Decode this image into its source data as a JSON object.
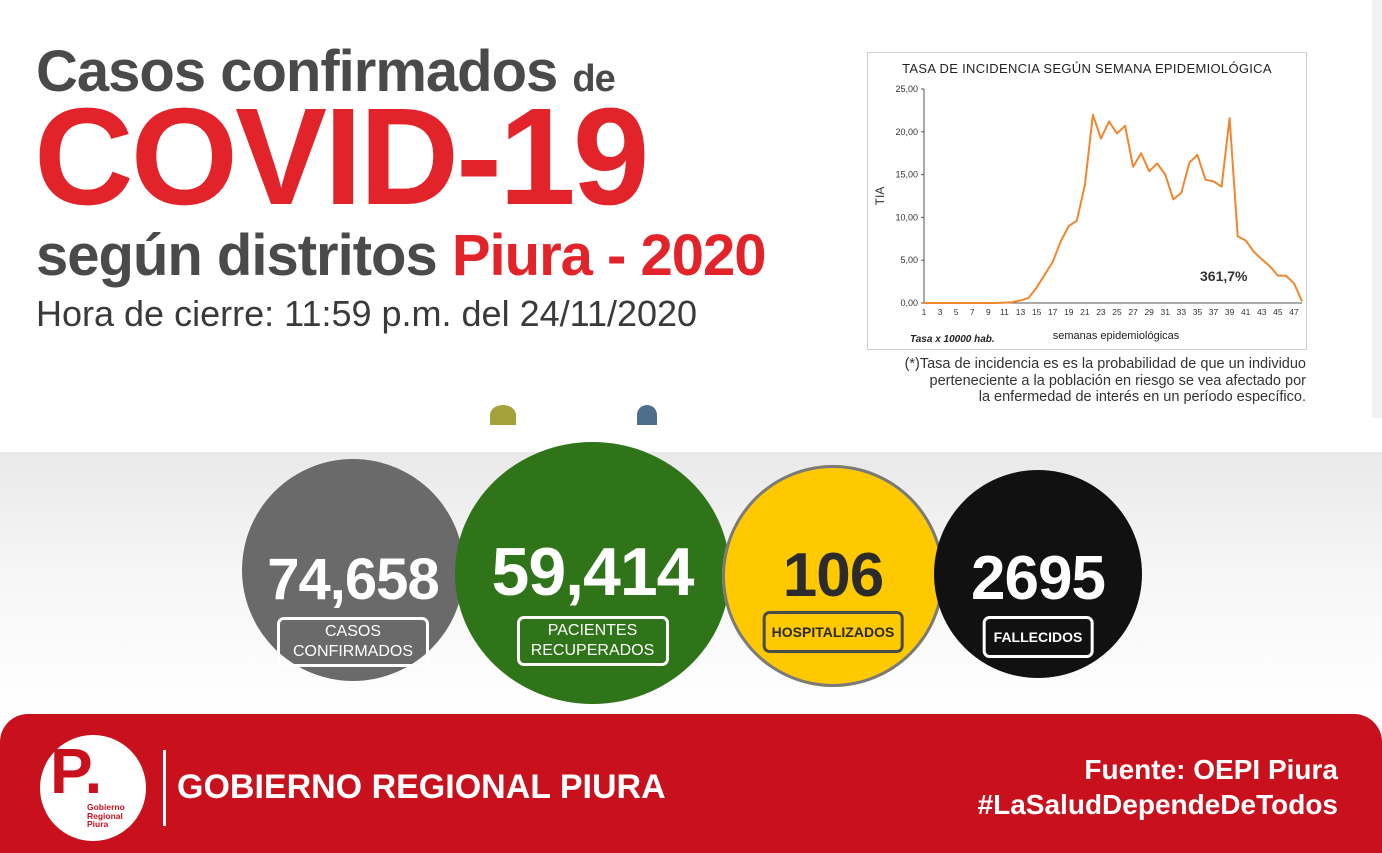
{
  "header": {
    "line1_main": "Casos confirmados",
    "line1_small": "de",
    "line2": "COVID-19",
    "line3_dark": "según distritos",
    "line3_red": "Piura - 2020",
    "closing_time": "Hora de cierre: 11:59 p.m. del 24/11/2020"
  },
  "chart_data": {
    "type": "line",
    "title": "TASA DE INCIDENCIA SEGÚN SEMANA EPIDEMIOLÓGICA",
    "ylabel": "TIA",
    "xlabel": "semanas epidemiológicas",
    "note": "Tasa x 10000 hab.",
    "annotation": "361,7%",
    "ylim": [
      0,
      25
    ],
    "yticks": [
      "0,00",
      "5,00",
      "10,00",
      "15,00",
      "20,00",
      "25,00"
    ],
    "xticks": [
      "1",
      "3",
      "5",
      "7",
      "9",
      "11",
      "13",
      "15",
      "17",
      "19",
      "21",
      "23",
      "25",
      "27",
      "29",
      "31",
      "33",
      "35",
      "37",
      "39",
      "41",
      "43",
      "45",
      "47"
    ],
    "color": "#f0872e",
    "x": [
      1,
      2,
      3,
      4,
      5,
      6,
      7,
      8,
      9,
      10,
      11,
      12,
      13,
      14,
      15,
      16,
      17,
      18,
      19,
      20,
      21,
      22,
      23,
      24,
      25,
      26,
      27,
      28,
      29,
      30,
      31,
      32,
      33,
      34,
      35,
      36,
      37,
      38,
      39,
      40,
      41,
      42,
      43,
      44,
      45,
      46,
      47,
      48
    ],
    "values": [
      0,
      0,
      0,
      0,
      0,
      0,
      0,
      0,
      0,
      0,
      0.05,
      0.1,
      0.3,
      0.6,
      1.8,
      3.3,
      4.8,
      7.2,
      9.0,
      9.6,
      13.8,
      22.0,
      19.2,
      21.2,
      19.8,
      20.7,
      15.9,
      17.5,
      15.4,
      16.3,
      15.0,
      12.1,
      12.9,
      16.4,
      17.3,
      14.4,
      14.2,
      13.6,
      21.6,
      7.8,
      7.3,
      6.0,
      5.1,
      4.3,
      3.2,
      3.2,
      2.3,
      0.2
    ]
  },
  "footnote": [
    "(*)Tasa de incidencia es es la probabilidad de que un individuo",
    "perteneciente a la población en riesgo se vea afectado por",
    "la enfermedad de interés en un período específico."
  ],
  "stats": [
    {
      "value": "74,658",
      "label_l1": "CASOS",
      "label_l2": "CONFIRMADOS",
      "color": "#6a6a6a"
    },
    {
      "value": "59,414",
      "label_l1": "PACIENTES",
      "label_l2": "RECUPERADOS",
      "color": "#2f7419"
    },
    {
      "value": "106",
      "label_l1": "HOSPITALIZADOS",
      "color": "#ffc900"
    },
    {
      "value": "2695",
      "label_l1": "FALLECIDOS",
      "color": "#111111"
    }
  ],
  "footer": {
    "logo_letter": "P.",
    "logo_text": [
      "Gobierno",
      "Regional",
      "Piura"
    ],
    "org": "GOBIERNO REGIONAL PIURA",
    "source": "Fuente: OEPI Piura",
    "hashtag": "#LaSaludDependeDeTodos",
    "color": "#c9111e"
  }
}
